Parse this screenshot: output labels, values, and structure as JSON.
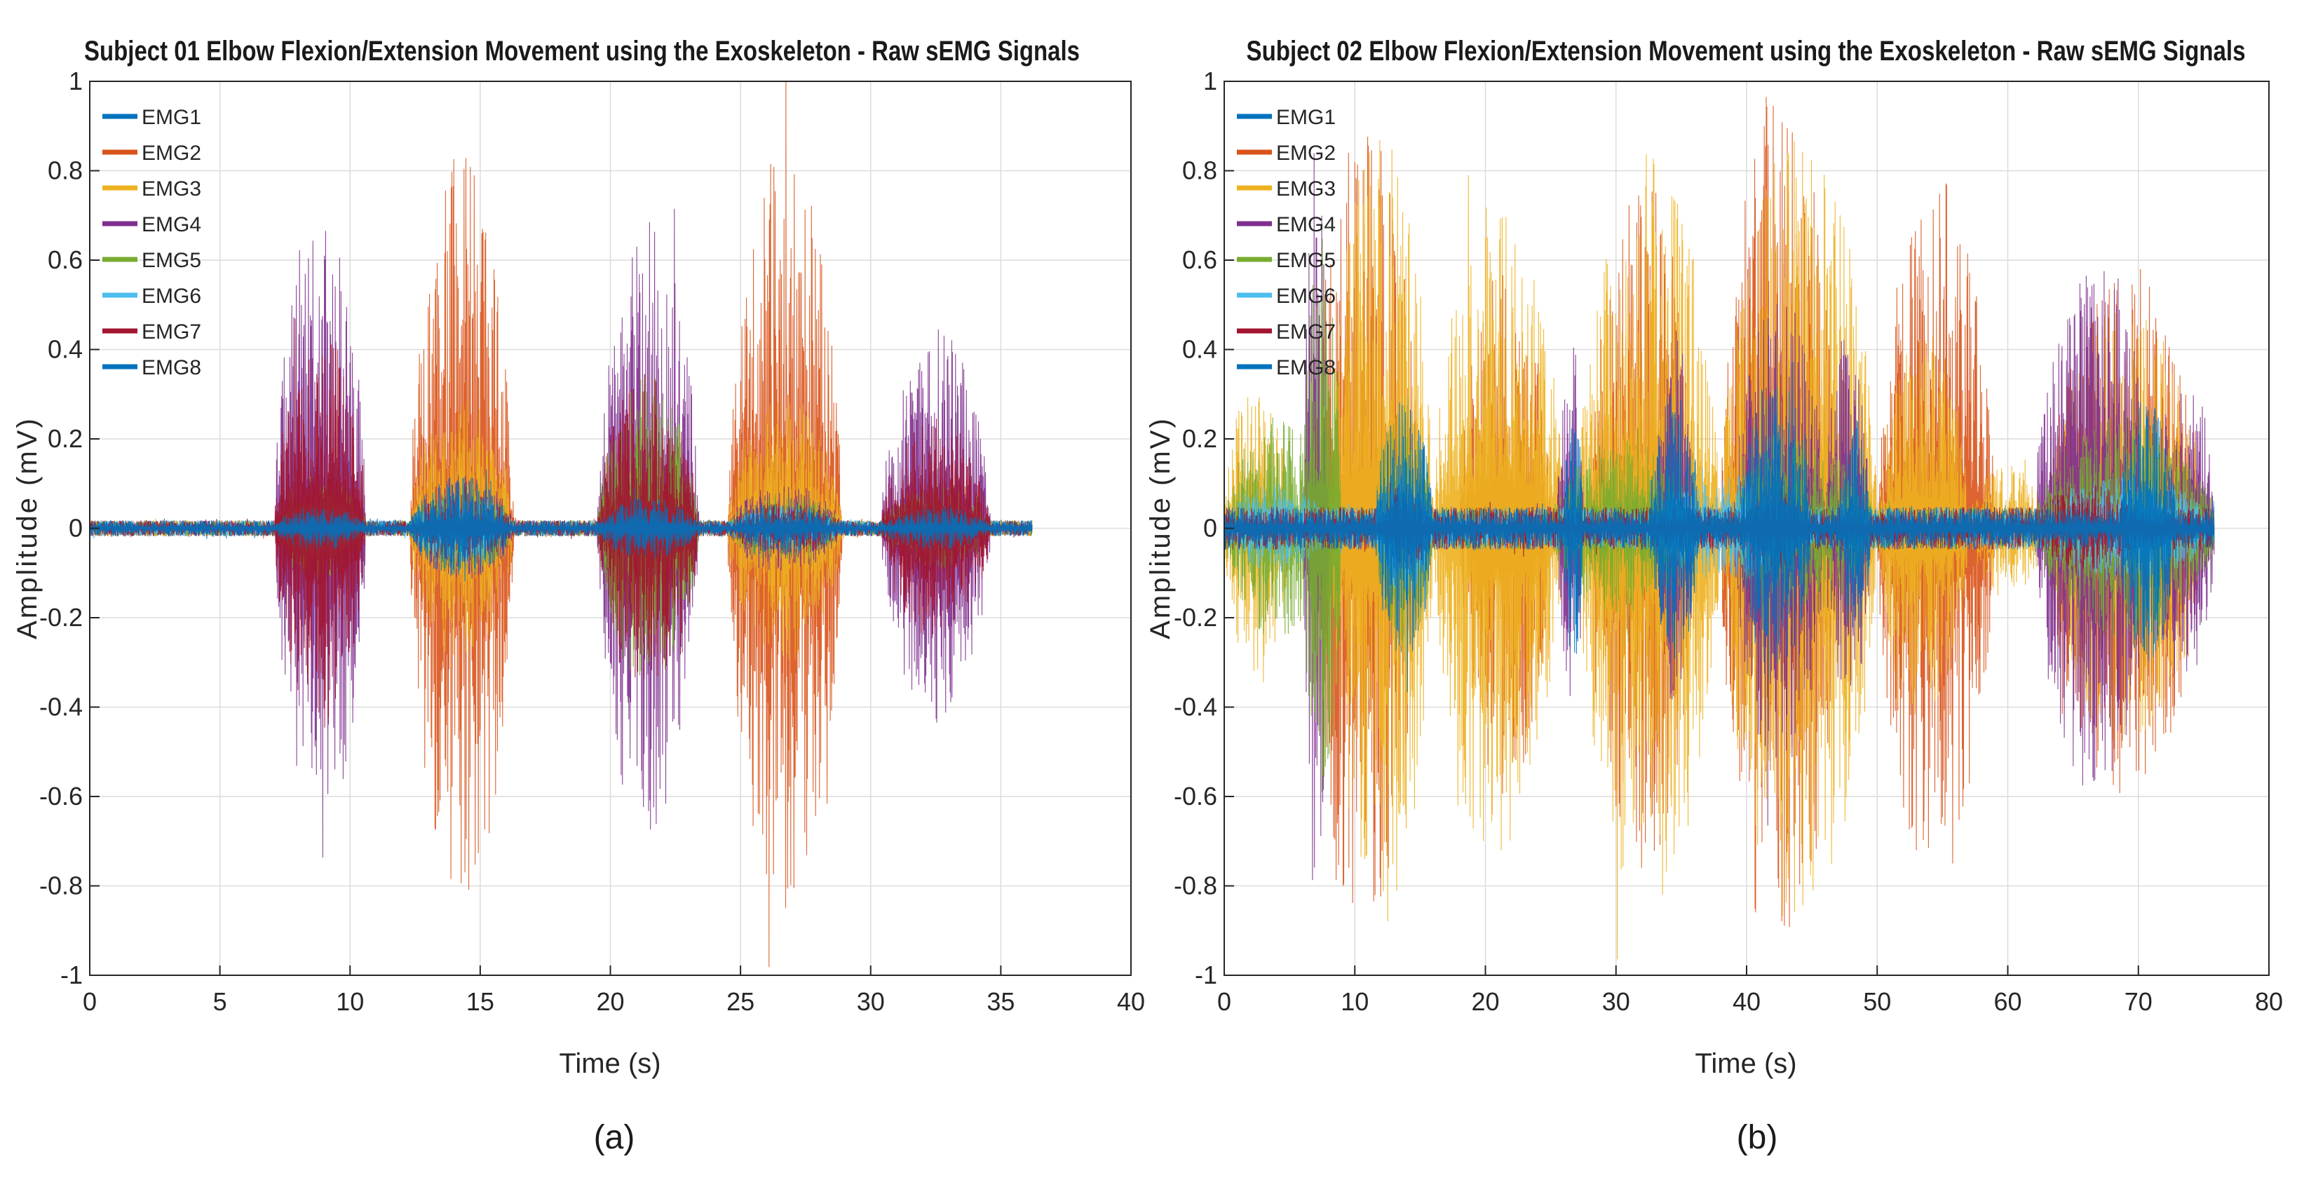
{
  "chart_data": [
    {
      "type": "line",
      "panel_label": "(a)",
      "title": "Subject 01 Elbow Flexion/Extension Movement using the Exoskeleton - Raw sEMG Signals",
      "xlabel": "Time (s)",
      "ylabel": "Amplitude (mV)",
      "xlim": [
        0,
        40
      ],
      "ylim": [
        -1,
        1
      ],
      "xticks": [
        0,
        5,
        10,
        15,
        20,
        25,
        30,
        35,
        40
      ],
      "yticks": [
        1,
        0.8,
        0.6,
        0.4,
        0.2,
        0,
        -0.2,
        -0.4,
        -0.6,
        -0.8,
        -1
      ],
      "ytick_labels": [
        "1",
        "0.8",
        "0.6",
        "0.4",
        "0.2",
        "0",
        "-0.2",
        "-0.4",
        "-0.6",
        "-0.8",
        "-1"
      ],
      "grid": true,
      "legend_position": "top-left",
      "signal_end_s": 36.2,
      "baseline_amplitude": 0.03,
      "series": [
        {
          "name": "EMG1",
          "color": "#0072BD",
          "bursts": [
            [
              7.1,
              10.6,
              0.05
            ],
            [
              12.3,
              16.2,
              0.12
            ],
            [
              19.5,
              23.4,
              0.07
            ],
            [
              24.6,
              28.8,
              0.06
            ],
            [
              30.4,
              34.6,
              0.05
            ]
          ]
        },
        {
          "name": "EMG2",
          "color": "#D95319",
          "bursts": [
            [
              12.3,
              16.3,
              0.85
            ],
            [
              24.5,
              28.9,
              0.85
            ],
            [
              19.5,
              23.4,
              0.25
            ],
            [
              7.1,
              10.6,
              0.15
            ],
            [
              30.4,
              34.6,
              0.12
            ]
          ]
        },
        {
          "name": "EMG3",
          "color": "#EDB120",
          "bursts": [
            [
              12.3,
              16.3,
              0.3
            ],
            [
              24.5,
              28.9,
              0.3
            ],
            [
              19.5,
              23.4,
              0.1
            ],
            [
              7.1,
              10.6,
              0.06
            ],
            [
              30.4,
              34.6,
              0.06
            ]
          ]
        },
        {
          "name": "EMG4",
          "color": "#7E2F8E",
          "bursts": [
            [
              7.1,
              10.6,
              0.75
            ],
            [
              19.5,
              23.4,
              0.7
            ],
            [
              30.4,
              34.6,
              0.45
            ],
            [
              12.3,
              16.3,
              0.12
            ],
            [
              24.5,
              28.9,
              0.1
            ]
          ]
        },
        {
          "name": "EMG5",
          "color": "#77AC30",
          "bursts": [
            [
              19.5,
              23.4,
              0.35
            ],
            [
              7.1,
              10.6,
              0.12
            ],
            [
              12.3,
              16.3,
              0.1
            ],
            [
              24.5,
              28.9,
              0.08
            ],
            [
              30.4,
              34.6,
              0.1
            ]
          ]
        },
        {
          "name": "EMG6",
          "color": "#4DBEEE",
          "bursts": [
            [
              7.1,
              10.6,
              0.06
            ],
            [
              12.3,
              16.3,
              0.08
            ],
            [
              19.5,
              23.4,
              0.06
            ],
            [
              24.5,
              28.9,
              0.05
            ],
            [
              30.4,
              34.6,
              0.06
            ]
          ]
        },
        {
          "name": "EMG7",
          "color": "#A2142F",
          "bursts": [
            [
              7.1,
              10.6,
              0.45
            ],
            [
              19.5,
              23.4,
              0.35
            ],
            [
              30.4,
              34.6,
              0.25
            ],
            [
              12.3,
              16.3,
              0.08
            ],
            [
              24.5,
              28.9,
              0.06
            ]
          ]
        },
        {
          "name": "EMG8",
          "color": "#0072BD",
          "bursts": [
            [
              7.1,
              10.6,
              0.05
            ],
            [
              12.3,
              16.2,
              0.12
            ],
            [
              19.5,
              23.4,
              0.07
            ],
            [
              24.6,
              28.8,
              0.06
            ],
            [
              30.4,
              34.6,
              0.05
            ]
          ]
        }
      ]
    },
    {
      "type": "line",
      "panel_label": "(b)",
      "title": "Subject 02 Elbow Flexion/Extension Movement using the Exoskeleton - Raw sEMG Signals",
      "xlabel": "Time (s)",
      "ylabel": "Amplitude (mV)",
      "xlim": [
        0,
        80
      ],
      "ylim": [
        -1,
        1
      ],
      "xticks": [
        0,
        10,
        20,
        30,
        40,
        50,
        60,
        70,
        80
      ],
      "yticks": [
        1,
        0.8,
        0.6,
        0.4,
        0.2,
        0,
        -0.2,
        -0.4,
        -0.6,
        -0.8,
        -1
      ],
      "ytick_labels": [
        "1",
        "0.8",
        "0.6",
        "0.4",
        "0.2",
        "0",
        "-0.2",
        "-0.4",
        "-0.6",
        "-0.8",
        "-1"
      ],
      "grid": true,
      "legend_position": "top-left",
      "signal_end_s": 75.8,
      "baseline_amplitude": 0.08,
      "series": [
        {
          "name": "EMG1",
          "color": "#0072BD",
          "bursts": [
            [
              11.5,
              16.0,
              0.3
            ],
            [
              26.0,
              27.5,
              0.3
            ],
            [
              32.5,
              36.5,
              0.3
            ],
            [
              39.5,
              45.0,
              0.35
            ],
            [
              47.0,
              49.5,
              0.25
            ],
            [
              68.5,
              73.0,
              0.3
            ]
          ]
        },
        {
          "name": "EMG2",
          "color": "#D95319",
          "bursts": [
            [
              6.5,
              15.0,
              0.9
            ],
            [
              18.0,
              25.0,
              0.6
            ],
            [
              28.0,
              36.0,
              0.8
            ],
            [
              38.0,
              47.0,
              1.0
            ],
            [
              50.0,
              59.0,
              0.8
            ],
            [
              63.0,
              75.0,
              0.6
            ]
          ]
        },
        {
          "name": "EMG3",
          "color": "#EDB120",
          "bursts": [
            [
              0.0,
              5.0,
              0.35
            ],
            [
              8.0,
              16.0,
              0.9
            ],
            [
              16.0,
              26.0,
              0.75
            ],
            [
              27.0,
              38.0,
              0.85
            ],
            [
              38.0,
              50.0,
              0.9
            ],
            [
              50.0,
              57.0,
              0.45
            ],
            [
              57.0,
              63.0,
              0.15
            ],
            [
              63.0,
              75.0,
              0.5
            ]
          ]
        },
        {
          "name": "EMG4",
          "color": "#7E2F8E",
          "bursts": [
            [
              6.0,
              8.0,
              0.85
            ],
            [
              25.5,
              27.5,
              0.45
            ],
            [
              33.0,
              36.0,
              0.45
            ],
            [
              39.0,
              46.0,
              0.55
            ],
            [
              46.0,
              49.5,
              0.45
            ],
            [
              62.0,
              71.0,
              0.6
            ],
            [
              71.0,
              76.0,
              0.35
            ]
          ]
        },
        {
          "name": "EMG5",
          "color": "#77AC30",
          "bursts": [
            [
              0.0,
              8.0,
              0.25
            ],
            [
              6.0,
              9.0,
              0.65
            ],
            [
              11.5,
              16.0,
              0.3
            ],
            [
              25.0,
              36.0,
              0.2
            ],
            [
              38.0,
              50.0,
              0.2
            ],
            [
              62.0,
              76.0,
              0.25
            ]
          ]
        },
        {
          "name": "EMG6",
          "color": "#4DBEEE",
          "bursts": [
            [
              0.0,
              8.0,
              0.1
            ],
            [
              11.5,
              16.0,
              0.15
            ],
            [
              32.5,
              45.0,
              0.12
            ],
            [
              62.0,
              76.0,
              0.12
            ]
          ]
        },
        {
          "name": "EMG7",
          "color": "#A2142F",
          "bursts": [
            [
              11.5,
              16.0,
              0.1
            ],
            [
              39.5,
              45.0,
              0.1
            ],
            [
              62.0,
              70.0,
              0.1
            ]
          ]
        },
        {
          "name": "EMG8",
          "color": "#0072BD",
          "bursts": [
            [
              11.5,
              16.0,
              0.3
            ],
            [
              26.0,
              27.5,
              0.3
            ],
            [
              32.5,
              36.5,
              0.3
            ],
            [
              39.5,
              45.0,
              0.35
            ],
            [
              47.0,
              49.5,
              0.25
            ],
            [
              68.5,
              73.0,
              0.3
            ]
          ]
        }
      ]
    }
  ]
}
